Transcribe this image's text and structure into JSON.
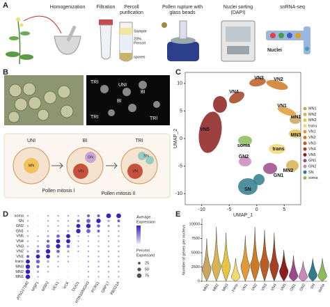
{
  "panels": [
    "A",
    "B",
    "C",
    "D",
    "E"
  ],
  "workflow": {
    "steps": [
      [
        "Homogenization"
      ],
      [
        "Filtration"
      ],
      [
        "Percoll",
        "purification"
      ],
      [
        "Pollen rupture with",
        "glass beads"
      ],
      [
        "Nuclei sorting",
        "(DAPI)"
      ],
      [
        "snRNA-seq"
      ]
    ],
    "percoll_labels": [
      "Sample",
      "20%",
      "Percoll",
      "spores"
    ],
    "nuclei": "Nuclei"
  },
  "micrographs": {
    "labels": [
      "TRI",
      "UNI",
      "BI",
      "BI",
      "TRI",
      "TRI"
    ]
  },
  "development": {
    "stages": [
      "UNI",
      "BI",
      "TRI"
    ],
    "cells": [
      "MN",
      "GN",
      "VN",
      "SN",
      "VN"
    ],
    "mitoses": [
      "Pollen mitosis I",
      "Pollen mitosis II"
    ]
  },
  "chart_data": [
    {
      "type": "scatter",
      "x_label": "UMAP_1",
      "y_label": "UMAP_2",
      "xlim": [
        -13,
        8
      ],
      "ylim": [
        -12,
        12
      ],
      "xticks": [
        -10,
        -5,
        0,
        5
      ],
      "yticks": [
        -10,
        -5,
        0,
        5,
        10
      ],
      "series": [
        {
          "name": "MN1",
          "color": "#c9a65e"
        },
        {
          "name": "MN2",
          "color": "#d7b352"
        },
        {
          "name": "MN3",
          "color": "#e3c444"
        },
        {
          "name": "trans",
          "color": "#f0d873"
        },
        {
          "name": "VN1",
          "color": "#e09a3a"
        },
        {
          "name": "VN2",
          "color": "#cc7a26"
        },
        {
          "name": "VN3",
          "color": "#b85e22"
        },
        {
          "name": "VN4",
          "color": "#a24222"
        },
        {
          "name": "VN5",
          "color": "#8c1e1e"
        },
        {
          "name": "GN1",
          "color": "#9c4a8c"
        },
        {
          "name": "GN2",
          "color": "#c98ab8"
        },
        {
          "name": "SN",
          "color": "#2f7c8c"
        },
        {
          "name": "soma",
          "color": "#8cbb5a"
        }
      ]
    },
    {
      "type": "dot",
      "rows": [
        "soma",
        "SN",
        "GN2",
        "GN1",
        "VN5",
        "VN4",
        "VN3",
        "VN2",
        "VN1",
        "trans",
        "MN3",
        "MN2",
        "MN1"
      ],
      "genes": [
        "AT5G17340",
        "MSP1",
        "MSP2",
        "VEX1",
        "VCK",
        "DUO1",
        "HTR10/MGH3",
        "PCR11",
        "GRP17",
        "RBS21A"
      ],
      "percent": [
        [
          10,
          5,
          10,
          10,
          10,
          10,
          30,
          30,
          80,
          80
        ],
        [
          10,
          5,
          10,
          10,
          10,
          30,
          60,
          70,
          20,
          30
        ],
        [
          10,
          5,
          10,
          10,
          10,
          60,
          70,
          40,
          20,
          20
        ],
        [
          10,
          5,
          10,
          10,
          20,
          70,
          60,
          30,
          10,
          10
        ],
        [
          10,
          10,
          20,
          40,
          60,
          10,
          10,
          10,
          10,
          10
        ],
        [
          10,
          10,
          30,
          60,
          60,
          10,
          10,
          10,
          10,
          10
        ],
        [
          10,
          20,
          50,
          70,
          40,
          10,
          10,
          10,
          10,
          10
        ],
        [
          15,
          40,
          70,
          40,
          20,
          10,
          10,
          10,
          10,
          10
        ],
        [
          30,
          60,
          60,
          20,
          10,
          5,
          10,
          10,
          10,
          10
        ],
        [
          60,
          50,
          20,
          10,
          10,
          5,
          10,
          10,
          10,
          10
        ],
        [
          70,
          30,
          10,
          10,
          5,
          5,
          10,
          10,
          10,
          10
        ],
        [
          70,
          20,
          10,
          5,
          5,
          5,
          10,
          10,
          10,
          10
        ],
        [
          70,
          10,
          5,
          5,
          5,
          5,
          10,
          10,
          10,
          10
        ]
      ],
      "expression": [
        [
          0,
          -1,
          0,
          0,
          0,
          0,
          1,
          1,
          2,
          2
        ],
        [
          0,
          -1,
          0,
          0,
          0,
          1,
          1,
          2,
          0,
          1
        ],
        [
          0,
          -1,
          0,
          0,
          0,
          2,
          2,
          1,
          0,
          0
        ],
        [
          0,
          -1,
          0,
          0,
          0,
          2,
          1,
          1,
          0,
          0
        ],
        [
          0,
          0,
          0,
          1,
          2,
          0,
          0,
          0,
          0,
          0
        ],
        [
          0,
          0,
          1,
          2,
          2,
          0,
          0,
          0,
          0,
          0
        ],
        [
          0,
          0,
          1,
          2,
          1,
          0,
          0,
          0,
          0,
          0
        ],
        [
          0,
          1,
          2,
          1,
          0,
          0,
          0,
          0,
          0,
          0
        ],
        [
          1,
          2,
          2,
          0,
          0,
          -1,
          0,
          0,
          0,
          0
        ],
        [
          2,
          1,
          0,
          0,
          0,
          -1,
          0,
          0,
          0,
          0
        ],
        [
          2,
          1,
          0,
          0,
          -1,
          -1,
          0,
          0,
          0,
          0
        ],
        [
          2,
          0,
          0,
          -1,
          -1,
          -1,
          0,
          0,
          0,
          0
        ],
        [
          2,
          0,
          -1,
          -1,
          -1,
          -1,
          0,
          0,
          0,
          0
        ]
      ],
      "color_range": [
        "#e6e6ef",
        "#3b1fc4"
      ],
      "expression_title": [
        "Average",
        "Expression"
      ],
      "percent_title": [
        "Percent",
        "Expressed"
      ],
      "size_legend": [
        25,
        50,
        75
      ]
    },
    {
      "type": "violin",
      "y_label": "Number of genes per nucleus",
      "categories": [
        "MN1",
        "MN2",
        "MN3",
        "trans",
        "VN1",
        "VN2",
        "VN3",
        "VN4",
        "VN5",
        "GN1",
        "GN2",
        "SN",
        "soma"
      ],
      "values": [
        2500,
        3000,
        3000,
        1000,
        3000,
        3200,
        3500,
        3000,
        2000,
        1200,
        1000,
        1300,
        1200
      ],
      "maxima": [
        7500,
        9500,
        8500,
        4000,
        8000,
        9500,
        9000,
        8500,
        5500,
        4500,
        3500,
        4000,
        4000
      ],
      "colors": [
        "#c9a65e",
        "#d7b352",
        "#e3c444",
        "#f0d873",
        "#e09a3a",
        "#cc7a26",
        "#b85e22",
        "#a24222",
        "#8c1e1e",
        "#9c4a8c",
        "#c98ab8",
        "#2f7c8c",
        "#8cbb5a"
      ],
      "ylim": [
        0,
        11000
      ],
      "yticks": [
        0,
        2500,
        5000,
        7500,
        10000
      ]
    }
  ]
}
